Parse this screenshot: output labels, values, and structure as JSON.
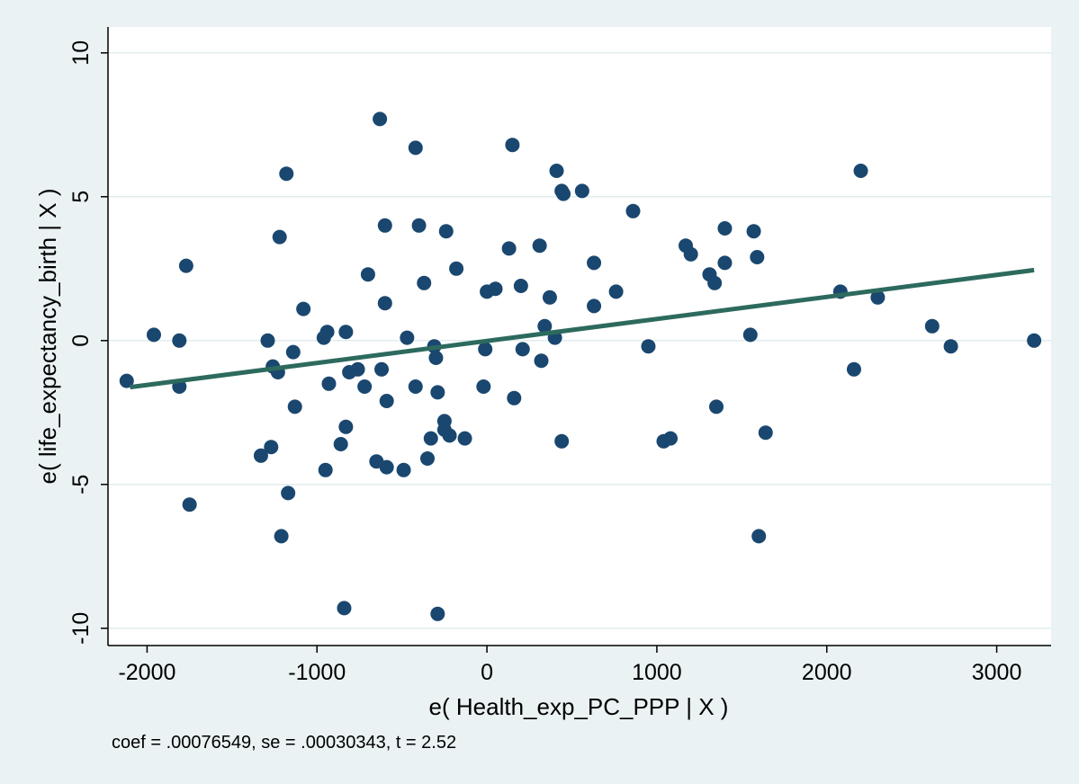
{
  "chart_data": {
    "type": "scatter",
    "title": "",
    "xlabel": "e( Health_exp_PC_PPP | X )",
    "ylabel": "e( life_expectancy_birth | X )",
    "note": "coef = .00076549, se = .00030343, t = 2.52",
    "xlim": [
      -2230,
      3320
    ],
    "ylim": [
      -10.6,
      10.9
    ],
    "x_ticks": [
      -2000,
      -1000,
      0,
      1000,
      2000,
      3000
    ],
    "x_tick_labels": [
      "-2000",
      "-1000",
      "0",
      "1000",
      "2000",
      "3000"
    ],
    "y_ticks": [
      -10,
      -5,
      0,
      5,
      10
    ],
    "y_tick_labels": [
      "-10",
      "-5",
      "0",
      "5",
      "10"
    ],
    "grid": true,
    "legend": false,
    "colors": {
      "background": "#eaf2f3",
      "plot_background": "#ffffff",
      "points": "#1a476f",
      "fit_line": "#2d6a5e",
      "grid": "#e1ecee"
    },
    "fit_line": {
      "x": [
        -2100,
        3220
      ],
      "y": [
        -1.62,
        2.45
      ]
    },
    "points": [
      {
        "x": -2120,
        "y": -1.4
      },
      {
        "x": -1960,
        "y": 0.2
      },
      {
        "x": -1810,
        "y": 0.0
      },
      {
        "x": -1810,
        "y": -1.6
      },
      {
        "x": -1770,
        "y": 2.6
      },
      {
        "x": -1750,
        "y": -5.7
      },
      {
        "x": -1330,
        "y": -4.0
      },
      {
        "x": -1290,
        "y": 0.0
      },
      {
        "x": -1270,
        "y": -3.7
      },
      {
        "x": -1260,
        "y": -0.9
      },
      {
        "x": -1230,
        "y": -1.1
      },
      {
        "x": -1220,
        "y": 3.6
      },
      {
        "x": -1210,
        "y": -6.8
      },
      {
        "x": -1180,
        "y": 5.8
      },
      {
        "x": -1170,
        "y": -5.3
      },
      {
        "x": -1140,
        "y": -0.4
      },
      {
        "x": -1130,
        "y": -2.3
      },
      {
        "x": -1080,
        "y": 1.1
      },
      {
        "x": -960,
        "y": 0.1
      },
      {
        "x": -950,
        "y": -4.5
      },
      {
        "x": -940,
        "y": 0.3
      },
      {
        "x": -930,
        "y": -1.5
      },
      {
        "x": -860,
        "y": -3.6
      },
      {
        "x": -840,
        "y": -9.3
      },
      {
        "x": -830,
        "y": -3.0
      },
      {
        "x": -830,
        "y": 0.3
      },
      {
        "x": -810,
        "y": -1.1
      },
      {
        "x": -760,
        "y": -1.0
      },
      {
        "x": -720,
        "y": -1.6
      },
      {
        "x": -700,
        "y": 2.3
      },
      {
        "x": -650,
        "y": -4.2
      },
      {
        "x": -630,
        "y": 7.7
      },
      {
        "x": -620,
        "y": -1.0
      },
      {
        "x": -600,
        "y": 1.3
      },
      {
        "x": -600,
        "y": 4.0
      },
      {
        "x": -590,
        "y": -2.1
      },
      {
        "x": -590,
        "y": -4.4
      },
      {
        "x": -490,
        "y": -4.5
      },
      {
        "x": -470,
        "y": 0.1
      },
      {
        "x": -420,
        "y": -1.6
      },
      {
        "x": -420,
        "y": 6.7
      },
      {
        "x": -400,
        "y": 4.0
      },
      {
        "x": -370,
        "y": 2.0
      },
      {
        "x": -350,
        "y": -4.1
      },
      {
        "x": -330,
        "y": -3.4
      },
      {
        "x": -310,
        "y": -0.2
      },
      {
        "x": -300,
        "y": -0.6
      },
      {
        "x": -290,
        "y": -1.8
      },
      {
        "x": -290,
        "y": -9.5
      },
      {
        "x": -250,
        "y": -2.8
      },
      {
        "x": -250,
        "y": -3.1
      },
      {
        "x": -240,
        "y": 3.8
      },
      {
        "x": -220,
        "y": -3.3
      },
      {
        "x": -180,
        "y": 2.5
      },
      {
        "x": -130,
        "y": -3.4
      },
      {
        "x": -20,
        "y": -1.6
      },
      {
        "x": -10,
        "y": -0.3
      },
      {
        "x": 0,
        "y": 1.7
      },
      {
        "x": 50,
        "y": 1.8
      },
      {
        "x": 130,
        "y": 3.2
      },
      {
        "x": 150,
        "y": 6.8
      },
      {
        "x": 160,
        "y": -2.0
      },
      {
        "x": 200,
        "y": 1.9
      },
      {
        "x": 210,
        "y": -0.3
      },
      {
        "x": 310,
        "y": 3.3
      },
      {
        "x": 320,
        "y": -0.7
      },
      {
        "x": 340,
        "y": 0.5
      },
      {
        "x": 370,
        "y": 1.5
      },
      {
        "x": 400,
        "y": 0.1
      },
      {
        "x": 410,
        "y": 5.9
      },
      {
        "x": 440,
        "y": -3.5
      },
      {
        "x": 440,
        "y": 5.2
      },
      {
        "x": 450,
        "y": 5.1
      },
      {
        "x": 560,
        "y": 5.2
      },
      {
        "x": 630,
        "y": 1.2
      },
      {
        "x": 630,
        "y": 2.7
      },
      {
        "x": 760,
        "y": 1.7
      },
      {
        "x": 860,
        "y": 4.5
      },
      {
        "x": 950,
        "y": -0.2
      },
      {
        "x": 1040,
        "y": -3.5
      },
      {
        "x": 1080,
        "y": -3.4
      },
      {
        "x": 1170,
        "y": 3.3
      },
      {
        "x": 1200,
        "y": 3.0
      },
      {
        "x": 1310,
        "y": 2.3
      },
      {
        "x": 1340,
        "y": 2.0
      },
      {
        "x": 1350,
        "y": -2.3
      },
      {
        "x": 1400,
        "y": 3.9
      },
      {
        "x": 1400,
        "y": 2.7
      },
      {
        "x": 1550,
        "y": 0.2
      },
      {
        "x": 1570,
        "y": 3.8
      },
      {
        "x": 1590,
        "y": 2.9
      },
      {
        "x": 1600,
        "y": -6.8
      },
      {
        "x": 1640,
        "y": -3.2
      },
      {
        "x": 2080,
        "y": 1.7
      },
      {
        "x": 2160,
        "y": -1.0
      },
      {
        "x": 2200,
        "y": 5.9
      },
      {
        "x": 2300,
        "y": 1.5
      },
      {
        "x": 2620,
        "y": 0.5
      },
      {
        "x": 2730,
        "y": -0.2
      },
      {
        "x": 3220,
        "y": 0.0
      }
    ]
  }
}
